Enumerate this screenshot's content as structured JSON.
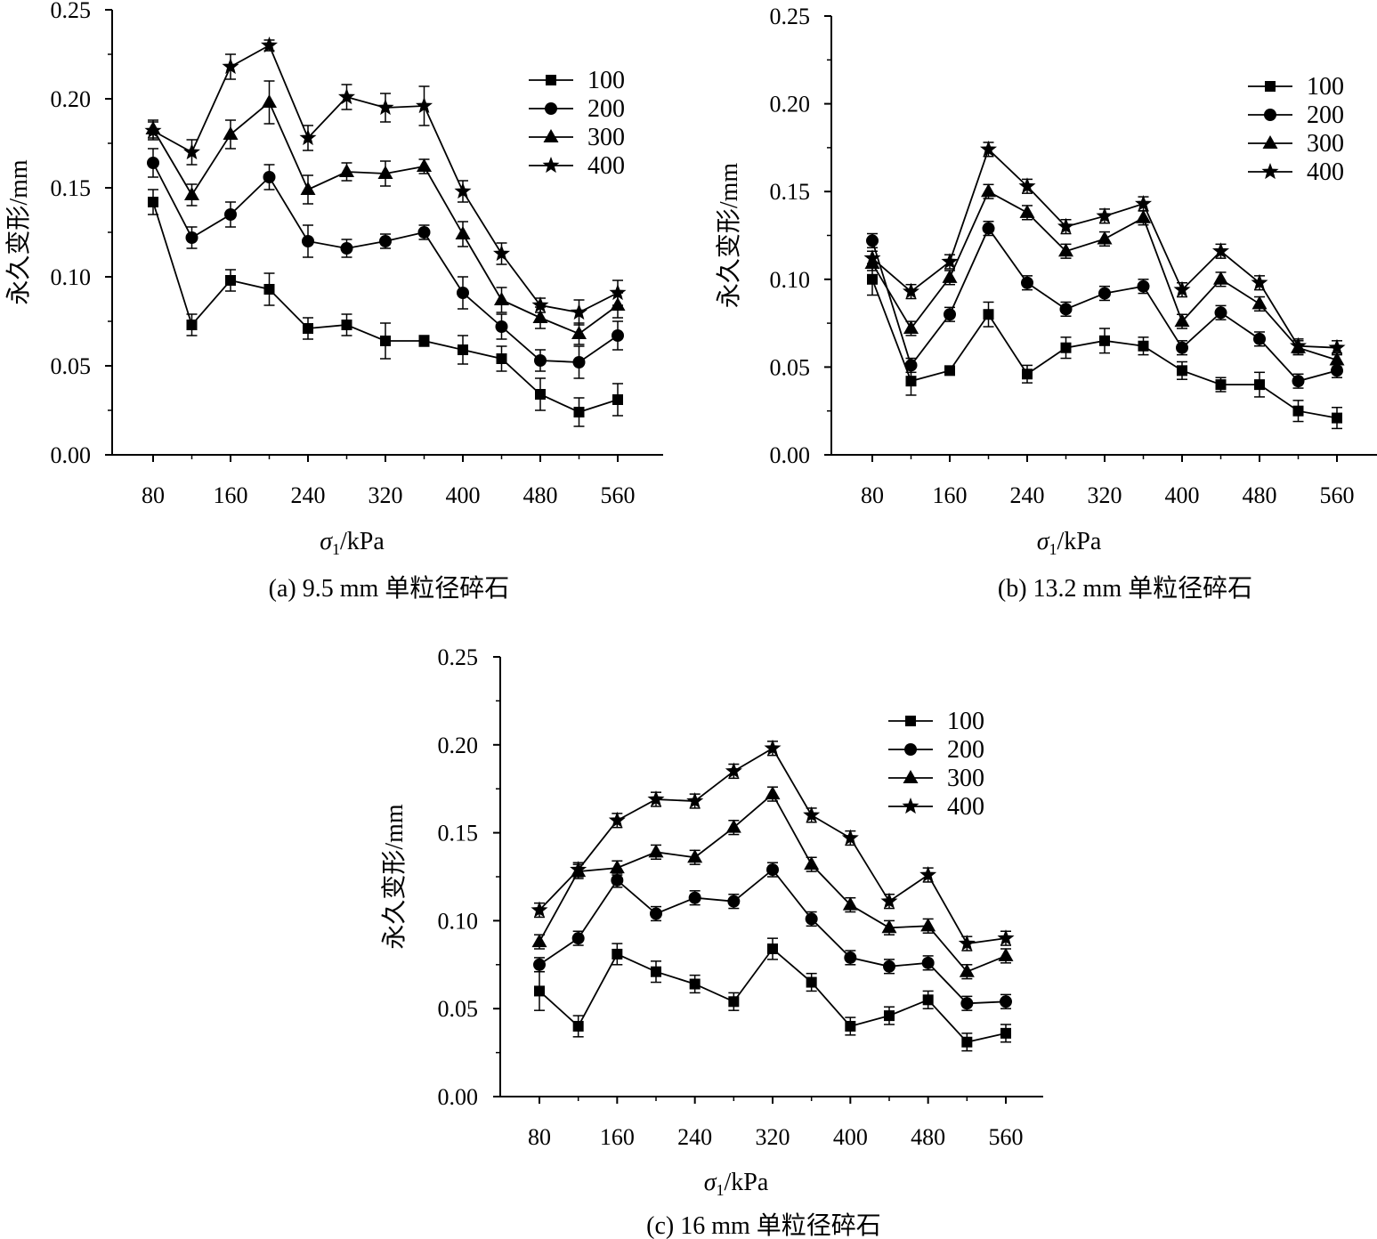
{
  "chart_data": [
    {
      "type": "line",
      "caption": "(a) 9.5 mm 单粒径碎石",
      "xlabel": "σ1/kPa",
      "xlabel_main": "σ",
      "xlabel_sub": "1",
      "xlabel_unit": "/kPa",
      "ylabel": "永久变形/mm",
      "xlim": [
        60,
        600
      ],
      "ylim": [
        0,
        0.25
      ],
      "xticks": [
        80,
        160,
        240,
        320,
        400,
        480,
        560
      ],
      "xtick_labels": [
        "80",
        "160",
        "240",
        "320",
        "400",
        "480",
        "560"
      ],
      "yticks": [
        0,
        0.05,
        0.1,
        0.15,
        0.2,
        0.25
      ],
      "ytick_labels": [
        "0.00",
        "0.05",
        "0.10",
        "0.15",
        "0.20",
        "0.25"
      ],
      "x": [
        80,
        120,
        160,
        200,
        240,
        280,
        320,
        360,
        400,
        440,
        480,
        520,
        560
      ],
      "legend_position": "top-right",
      "series": [
        {
          "name": "100",
          "marker": "square",
          "values": [
            0.142,
            0.073,
            0.098,
            0.093,
            0.071,
            0.073,
            0.064,
            0.064,
            0.059,
            0.054,
            0.034,
            0.024,
            0.031
          ],
          "errors": [
            0.007,
            0.006,
            0.006,
            0.009,
            0.006,
            0.006,
            0.01,
            0.003,
            0.008,
            0.007,
            0.009,
            0.008,
            0.009
          ]
        },
        {
          "name": "200",
          "marker": "circle",
          "values": [
            0.164,
            0.122,
            0.135,
            0.156,
            0.12,
            0.116,
            0.12,
            0.125,
            0.091,
            0.072,
            0.053,
            0.052,
            0.067
          ],
          "errors": [
            0.008,
            0.006,
            0.007,
            0.007,
            0.009,
            0.005,
            0.004,
            0.004,
            0.009,
            0.007,
            0.006,
            0.009,
            0.008
          ]
        },
        {
          "name": "300",
          "marker": "triangle",
          "values": [
            0.183,
            0.146,
            0.18,
            0.198,
            0.149,
            0.159,
            0.158,
            0.162,
            0.124,
            0.087,
            0.077,
            0.068,
            0.084
          ],
          "errors": [
            0.005,
            0.006,
            0.008,
            0.012,
            0.008,
            0.005,
            0.007,
            0.004,
            0.007,
            0.007,
            0.006,
            0.006,
            0.007
          ]
        },
        {
          "name": "400",
          "marker": "star",
          "values": [
            0.182,
            0.17,
            0.218,
            0.23,
            0.178,
            0.201,
            0.195,
            0.196,
            0.148,
            0.113,
            0.084,
            0.08,
            0.091
          ],
          "errors": [
            0.005,
            0.007,
            0.007,
            0.003,
            0.007,
            0.007,
            0.008,
            0.011,
            0.006,
            0.006,
            0.004,
            0.007,
            0.007
          ]
        }
      ]
    },
    {
      "type": "line",
      "caption": "(b) 13.2 mm 单粒径碎石",
      "xlabel": "σ1/kPa",
      "xlabel_main": "σ",
      "xlabel_sub": "1",
      "xlabel_unit": "/kPa",
      "ylabel": "永久变形/mm",
      "xlim": [
        60,
        600
      ],
      "ylim": [
        0,
        0.25
      ],
      "xticks": [
        80,
        160,
        240,
        320,
        400,
        480,
        560
      ],
      "xtick_labels": [
        "80",
        "160",
        "240",
        "320",
        "400",
        "480",
        "560"
      ],
      "yticks": [
        0,
        0.05,
        0.1,
        0.15,
        0.2,
        0.25
      ],
      "ytick_labels": [
        "0.00",
        "0.05",
        "0.10",
        "0.15",
        "0.20",
        "0.25"
      ],
      "x": [
        80,
        120,
        160,
        200,
        240,
        280,
        320,
        360,
        400,
        440,
        480,
        520,
        560
      ],
      "legend_position": "top-right",
      "series": [
        {
          "name": "100",
          "marker": "square",
          "values": [
            0.1,
            0.042,
            0.048,
            0.08,
            0.046,
            0.061,
            0.065,
            0.062,
            0.048,
            0.04,
            0.04,
            0.025,
            0.021
          ],
          "errors": [
            0.009,
            0.008,
            0.002,
            0.007,
            0.005,
            0.006,
            0.007,
            0.005,
            0.005,
            0.004,
            0.007,
            0.006,
            0.006
          ]
        },
        {
          "name": "200",
          "marker": "circle",
          "values": [
            0.122,
            0.051,
            0.08,
            0.129,
            0.098,
            0.083,
            0.092,
            0.096,
            0.061,
            0.081,
            0.066,
            0.042,
            0.048
          ]
        },
        {
          "name": "300",
          "marker": "triangle",
          "values": [
            0.109,
            0.072,
            0.101,
            0.15,
            0.138,
            0.116,
            0.123,
            0.135,
            0.076,
            0.1,
            0.086,
            0.061,
            0.054
          ]
        },
        {
          "name": "400",
          "marker": "star",
          "values": [
            0.112,
            0.093,
            0.11,
            0.174,
            0.153,
            0.13,
            0.136,
            0.143,
            0.094,
            0.116,
            0.098,
            0.062,
            0.061
          ]
        }
      ]
    },
    {
      "type": "line",
      "caption": "(c) 16 mm 单粒径碎石",
      "xlabel": "σ1/kPa",
      "xlabel_main": "σ",
      "xlabel_sub": "1",
      "xlabel_unit": "/kPa",
      "ylabel": "永久变形/mm",
      "xlim": [
        60,
        600
      ],
      "ylim": [
        0,
        0.25
      ],
      "xticks": [
        80,
        160,
        240,
        320,
        400,
        480,
        560
      ],
      "xtick_labels": [
        "80",
        "160",
        "240",
        "320",
        "400",
        "480",
        "560"
      ],
      "yticks": [
        0,
        0.05,
        0.1,
        0.15,
        0.2,
        0.25
      ],
      "ytick_labels": [
        "0.00",
        "0.05",
        "0.10",
        "0.15",
        "0.20",
        "0.25"
      ],
      "x": [
        80,
        120,
        160,
        200,
        240,
        280,
        320,
        360,
        400,
        440,
        480,
        520,
        560
      ],
      "legend_position": "top-right",
      "series": [
        {
          "name": "100",
          "marker": "square",
          "values": [
            0.06,
            0.04,
            0.081,
            0.071,
            0.064,
            0.054,
            0.084,
            0.065,
            0.04,
            0.046,
            0.055,
            0.031,
            0.036
          ],
          "errors": [
            0.011,
            0.006,
            0.006,
            0.006,
            0.005,
            0.005,
            0.006,
            0.005,
            0.005,
            0.005,
            0.005,
            0.005,
            0.005
          ]
        },
        {
          "name": "200",
          "marker": "circle",
          "values": [
            0.075,
            0.09,
            0.123,
            0.104,
            0.113,
            0.111,
            0.129,
            0.101,
            0.079,
            0.074,
            0.076,
            0.053,
            0.054
          ]
        },
        {
          "name": "300",
          "marker": "triangle",
          "values": [
            0.088,
            0.128,
            0.13,
            0.139,
            0.136,
            0.153,
            0.172,
            0.132,
            0.109,
            0.096,
            0.097,
            0.071,
            0.08
          ]
        },
        {
          "name": "400",
          "marker": "star",
          "values": [
            0.106,
            0.129,
            0.157,
            0.169,
            0.168,
            0.185,
            0.198,
            0.16,
            0.147,
            0.111,
            0.126,
            0.087,
            0.09
          ]
        }
      ]
    }
  ]
}
